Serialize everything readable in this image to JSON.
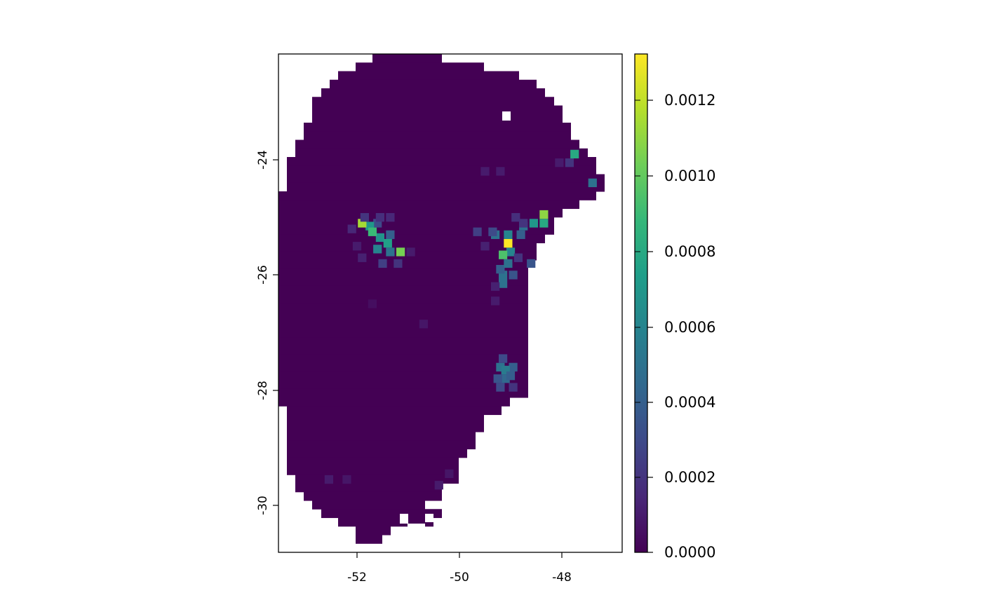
{
  "map": {
    "type": "raster",
    "x_ticks": [
      "-52",
      "-50",
      "-48"
    ],
    "y_ticks": [
      "-24",
      "-26",
      "-28",
      "-30"
    ],
    "legend_position": "right",
    "colorbar": {
      "colormap": "viridis",
      "min": 0.0,
      "max": 0.00133,
      "ticks": [
        "0.0000",
        "0.0002",
        "0.0004",
        "0.0006",
        "0.0008",
        "0.0010",
        "0.0012"
      ],
      "colors": [
        "#440154",
        "#482878",
        "#3e4989",
        "#31688e",
        "#26828e",
        "#1f9e89",
        "#35b779",
        "#6ece58",
        "#b5de2b",
        "#fde725"
      ]
    },
    "hotspots": [
      {
        "lon": -51.9,
        "lat": -25.1,
        "value": 0.00115
      },
      {
        "lon": -51.7,
        "lat": -25.25,
        "value": 0.0009
      },
      {
        "lon": -51.4,
        "lat": -25.45,
        "value": 0.00075
      },
      {
        "lon": -51.15,
        "lat": -25.6,
        "value": 0.00105
      },
      {
        "lon": -49.05,
        "lat": -25.45,
        "value": 0.00133
      },
      {
        "lon": -49.15,
        "lat": -25.65,
        "value": 0.00095
      },
      {
        "lon": -48.35,
        "lat": -24.95,
        "value": 0.0011
      },
      {
        "lon": -47.75,
        "lat": -23.9,
        "value": 0.0008
      },
      {
        "lon": -47.4,
        "lat": -24.4,
        "value": 0.0005
      },
      {
        "lon": -49.1,
        "lat": -27.65,
        "value": 0.00055
      },
      {
        "lon": -49.15,
        "lat": -26.15,
        "value": 0.0005
      }
    ]
  }
}
